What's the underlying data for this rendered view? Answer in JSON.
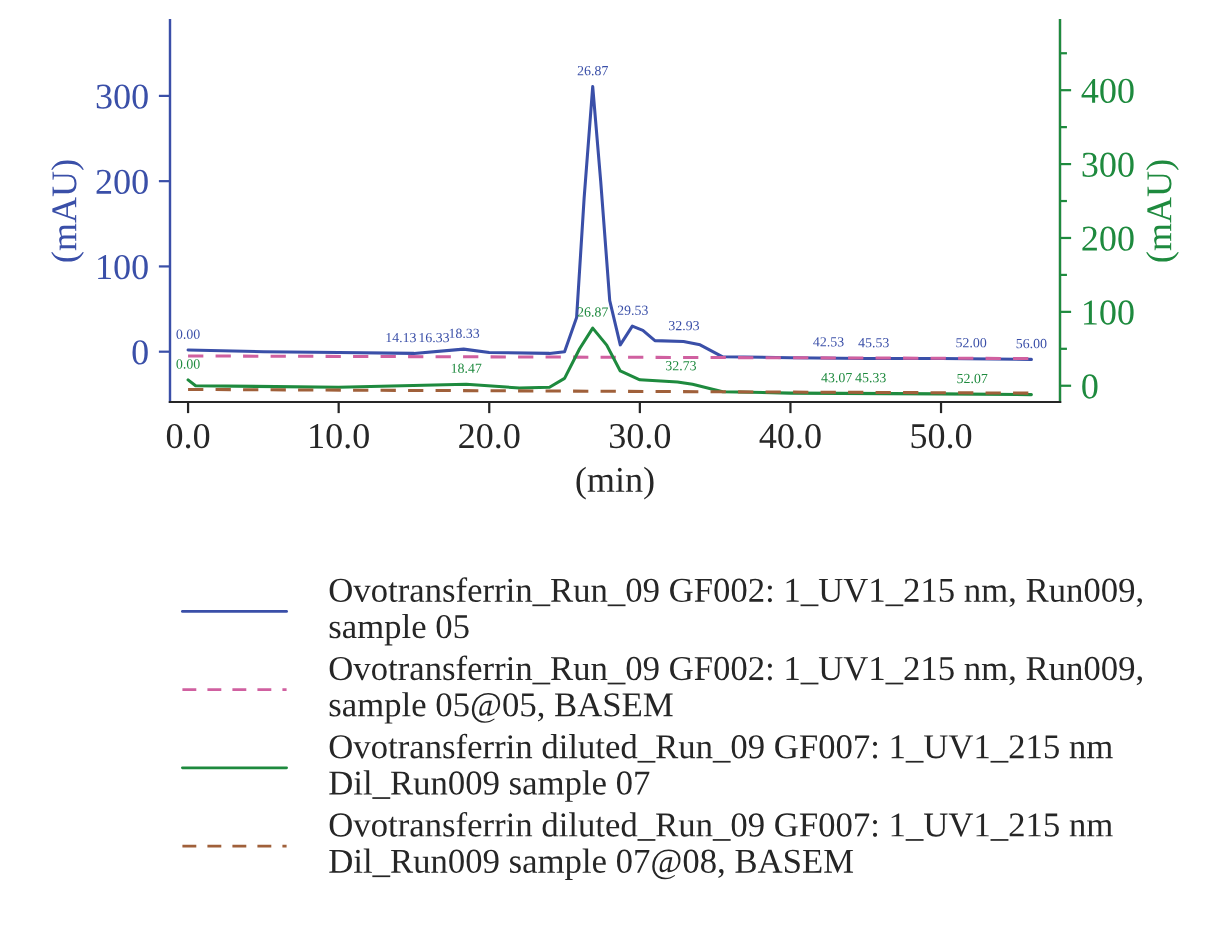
{
  "chart_data": {
    "type": "line",
    "xlabel": "(min)",
    "ylabel": "(mAU)",
    "y2label": "(mAU)",
    "xlim": [
      -1.2,
      57.9
    ],
    "xticks": [
      {
        "value": 0,
        "label": "0.0"
      },
      {
        "value": 10,
        "label": "10.0"
      },
      {
        "value": 20,
        "label": "20.0"
      },
      {
        "value": 30,
        "label": "30.0"
      },
      {
        "value": 40,
        "label": "40.0"
      },
      {
        "value": 50,
        "label": "50.0"
      }
    ],
    "ylim": [
      -59,
      389
    ],
    "yticks": [
      0,
      100,
      200,
      300
    ],
    "y2lim": [
      -22,
      495
    ],
    "y2ticks": [
      0,
      {
        "value": 50,
        "label": null
      },
      100,
      {
        "value": 150,
        "label": null
      },
      200,
      {
        "value": 250,
        "label": null
      },
      300,
      {
        "value": 350,
        "label": null
      },
      400,
      {
        "value": 450,
        "label": null
      }
    ],
    "grid": false,
    "legend": "bottom",
    "line_style": "solid",
    "series": [
      {
        "name": "Ovotransferrin_Run_09 GF002: 1_UV1_215 nm, Run009, sample 05",
        "color": "#3a4fa8",
        "axis": "y",
        "x": [
          0,
          5,
          10,
          15,
          18.3,
          20,
          24,
          25,
          25.8,
          26.3,
          26.87,
          27.4,
          28,
          28.7,
          29.5,
          30.2,
          31,
          32.9,
          34,
          35.5,
          40,
          45,
          50,
          56
        ],
        "values": [
          2,
          0,
          -1,
          -2,
          3,
          -1,
          -2,
          0,
          40,
          180,
          311,
          200,
          60,
          8,
          30,
          25,
          13,
          12,
          8,
          -6,
          -7,
          -8,
          -8,
          -9
        ]
      },
      {
        "name": "Ovotransferrin_Run_09 GF002: 1_UV1_215 nm, Run009, sample 05@05, BASEM",
        "color": "#d060a0",
        "axis": "y",
        "line_style": "dashed",
        "x": [
          0,
          56
        ],
        "values": [
          -5,
          -8
        ]
      },
      {
        "name": "Ovotransferrin diluted_Run_09 GF007: 1_UV1_215 nm Dil_Run009 sample 07",
        "color": "#1e8a3e",
        "axis": "y2",
        "x": [
          0,
          0.5,
          10,
          18.47,
          22,
          24,
          25,
          26,
          26.87,
          27.8,
          28.7,
          30,
          32.5,
          33.5,
          35.5,
          40,
          50,
          56
        ],
        "values": [
          8,
          0,
          -2,
          2,
          -3,
          -2,
          10,
          50,
          78,
          55,
          20,
          8,
          5,
          2,
          -8,
          -10,
          -11,
          -12
        ]
      },
      {
        "name": "Ovotransferrin diluted_Run_09 GF007: 1_UV1_215 nm Dil_Run009 sample 07@08, BASEM",
        "color": "#a0603a",
        "axis": "y2",
        "line_style": "dashed",
        "x": [
          0,
          56
        ],
        "values": [
          -5,
          -10
        ]
      }
    ],
    "annotations": [
      {
        "text": "0.00",
        "x": 0,
        "y": 2
      },
      {
        "text": "14.13",
        "x": 14.13,
        "y": -2
      },
      {
        "text": "16.33",
        "x": 16.33,
        "y": -2
      },
      {
        "text": "18.33",
        "x": 18.33,
        "y": 3
      },
      {
        "text": "26.87",
        "x": 26.87,
        "y": 311
      },
      {
        "text": "29.53",
        "x": 29.53,
        "y": 30
      },
      {
        "text": "32.93",
        "x": 32.93,
        "y": 12
      },
      {
        "text": "42.53",
        "x": 42.53,
        "y": -7
      },
      {
        "text": "45.53",
        "x": 45.53,
        "y": -8
      },
      {
        "text": "52.00",
        "x": 52.0,
        "y": -8
      },
      {
        "text": "56.00",
        "x": 56.0,
        "y": -9
      },
      {
        "text": "0.00",
        "x": 0,
        "y": -33
      },
      {
        "text": "18.47",
        "x": 18.47,
        "y": -38
      },
      {
        "text": "26.87",
        "x": 26.87,
        "y": 28
      },
      {
        "text": "32.73",
        "x": 32.73,
        "y": -35
      },
      {
        "text": "43.07",
        "x": 43.07,
        "y": -49
      },
      {
        "text": "45.33",
        "x": 45.33,
        "y": -49
      },
      {
        "text": "52.07",
        "x": 52.07,
        "y": -50
      }
    ]
  }
}
